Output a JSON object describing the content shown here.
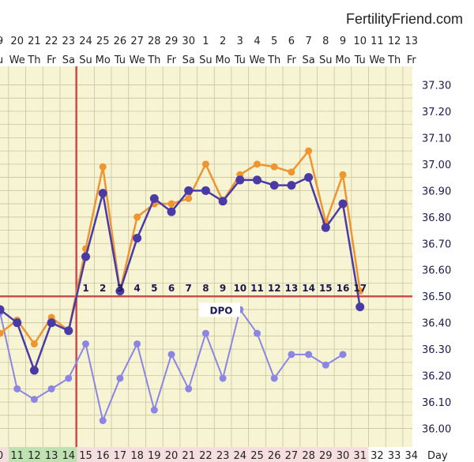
{
  "brand": "FertilityFriend.com",
  "chart_data": {
    "type": "line",
    "dates": [
      "9",
      "20",
      "21",
      "22",
      "23",
      "24",
      "25",
      "26",
      "27",
      "28",
      "29",
      "30",
      "1",
      "2",
      "3",
      "4",
      "5",
      "6",
      "7",
      "8",
      "9",
      "10",
      "11",
      "12",
      "13"
    ],
    "weekdays": [
      "u",
      "We",
      "Th",
      "Fr",
      "Sa",
      "Su",
      "Mo",
      "Tu",
      "We",
      "Th",
      "Fr",
      "Sa",
      "Su",
      "Mo",
      "Tu",
      "We",
      "Th",
      "Fr",
      "Sa",
      "Su",
      "Mo",
      "Tu",
      "We",
      "Th",
      "Fr"
    ],
    "cycle_days": [
      "0",
      "11",
      "12",
      "13",
      "14",
      "15",
      "16",
      "17",
      "18",
      "19",
      "20",
      "21",
      "22",
      "23",
      "24",
      "25",
      "26",
      "27",
      "28",
      "29",
      "30",
      "31",
      "32",
      "33",
      "34"
    ],
    "cycle_day_label": "Day",
    "ylim": [
      35.93,
      37.37
    ],
    "yticks": [
      "36.00",
      "36.10",
      "36.20",
      "36.30",
      "36.40",
      "36.50",
      "36.60",
      "36.70",
      "36.80",
      "36.90",
      "37.00",
      "37.10",
      "37.20",
      "37.30"
    ],
    "coverline": 36.5,
    "ovulation_index": 4,
    "dpo_label": "DPO",
    "dpo_numbers": [
      "1",
      "2",
      "3",
      "4",
      "5",
      "6",
      "7",
      "8",
      "9",
      "10",
      "11",
      "12",
      "13",
      "14",
      "15",
      "16",
      "17"
    ],
    "colors": {
      "primary": "#4a3aa6",
      "adjusted": "#ee9430",
      "secondary": "#8b85e6",
      "coverline": "#cc4d4d",
      "grid": "#c9c49f",
      "background": "#f7f4d3",
      "band_pink": "#f6dede",
      "band_green": "#bfe0b0"
    },
    "series": [
      {
        "key": "adjusted",
        "values": [
          36.36,
          36.41,
          36.32,
          36.42,
          36.37,
          36.68,
          36.99,
          36.52,
          36.8,
          36.85,
          36.85,
          36.87,
          37.0,
          36.86,
          36.96,
          37.0,
          36.99,
          36.97,
          37.05,
          36.78,
          36.96,
          36.52,
          null,
          null,
          null
        ]
      },
      {
        "key": "primary",
        "values": [
          36.45,
          36.4,
          36.22,
          36.4,
          36.37,
          36.65,
          36.89,
          36.52,
          36.72,
          36.87,
          36.82,
          36.9,
          36.9,
          36.86,
          36.94,
          36.94,
          36.92,
          36.92,
          36.95,
          36.76,
          36.85,
          36.46,
          null,
          null,
          null
        ]
      },
      {
        "key": "secondary",
        "values": [
          36.44,
          36.15,
          36.11,
          36.15,
          36.19,
          36.32,
          36.03,
          36.19,
          36.32,
          36.07,
          36.28,
          36.15,
          36.36,
          36.19,
          36.45,
          36.36,
          36.19,
          36.28,
          36.28,
          36.24,
          36.28,
          null,
          null,
          null,
          null
        ]
      }
    ]
  }
}
